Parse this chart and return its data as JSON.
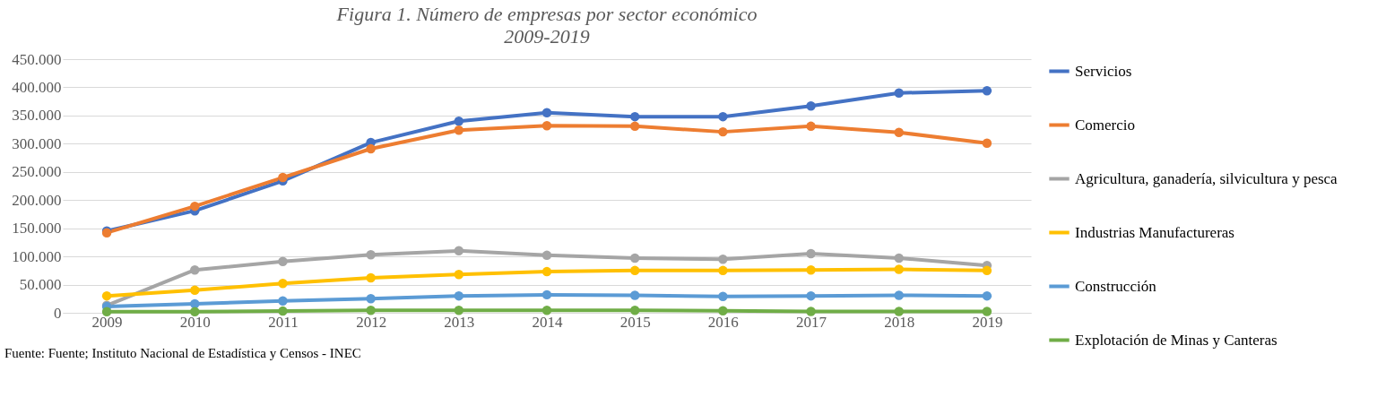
{
  "chart_data": {
    "type": "line",
    "title": "Figura 1. Número de empresas por sector económico",
    "subtitle": "2009-2019",
    "categories": [
      "2009",
      "2010",
      "2011",
      "2012",
      "2013",
      "2014",
      "2015",
      "2016",
      "2017",
      "2018",
      "2019"
    ],
    "series": [
      {
        "name": "Servicios",
        "color": "#4472c4",
        "values": [
          145000,
          181000,
          234000,
          302000,
          340000,
          355000,
          348000,
          348000,
          367000,
          390000,
          394000
        ]
      },
      {
        "name": "Comercio",
        "color": "#ed7d31",
        "values": [
          142000,
          189000,
          240000,
          291000,
          324000,
          332000,
          331000,
          321000,
          331000,
          320000,
          301000
        ]
      },
      {
        "name": "Agricultura, ganadería, silvicultura y pesca",
        "color": "#a5a5a5",
        "values": [
          13000,
          76000,
          91000,
          103000,
          110000,
          102000,
          97000,
          95000,
          105000,
          97000,
          84000
        ]
      },
      {
        "name": "Industrias Manufactureras",
        "color": "#ffc000",
        "values": [
          30000,
          40000,
          52000,
          62000,
          68000,
          73000,
          75000,
          75000,
          76000,
          77000,
          75000
        ]
      },
      {
        "name": "Construcción",
        "color": "#5b9bd5",
        "values": [
          11000,
          16000,
          21000,
          25000,
          30000,
          32000,
          31000,
          29000,
          30000,
          31000,
          30000
        ]
      },
      {
        "name": "Explotación de Minas y Canteras",
        "color": "#70ad47",
        "values": [
          2000,
          2000,
          3000,
          4500,
          4500,
          4500,
          4500,
          3500,
          2500,
          2500,
          2500
        ]
      }
    ],
    "ylim": [
      0,
      450000
    ],
    "yticks": [
      0,
      {
        "value": 50000,
        "label": "50.000"
      },
      {
        "value": 100000,
        "label": "100.000"
      },
      {
        "value": 150000,
        "label": "150.000"
      },
      {
        "value": 200000,
        "label": "200.000"
      },
      {
        "value": 250000,
        "label": "250.000"
      },
      {
        "value": 300000,
        "label": "300.000"
      },
      {
        "value": 350000,
        "label": "350.000"
      },
      {
        "value": 400000,
        "label": "400.000"
      },
      {
        "value": 450000,
        "label": "450.000"
      }
    ],
    "grid": "y",
    "legend": "right",
    "marker": "circle",
    "line_style": "solid",
    "annotations": [
      "Fuente: Fuente; Instituto Nacional de Estadística y Censos - INEC"
    ]
  }
}
